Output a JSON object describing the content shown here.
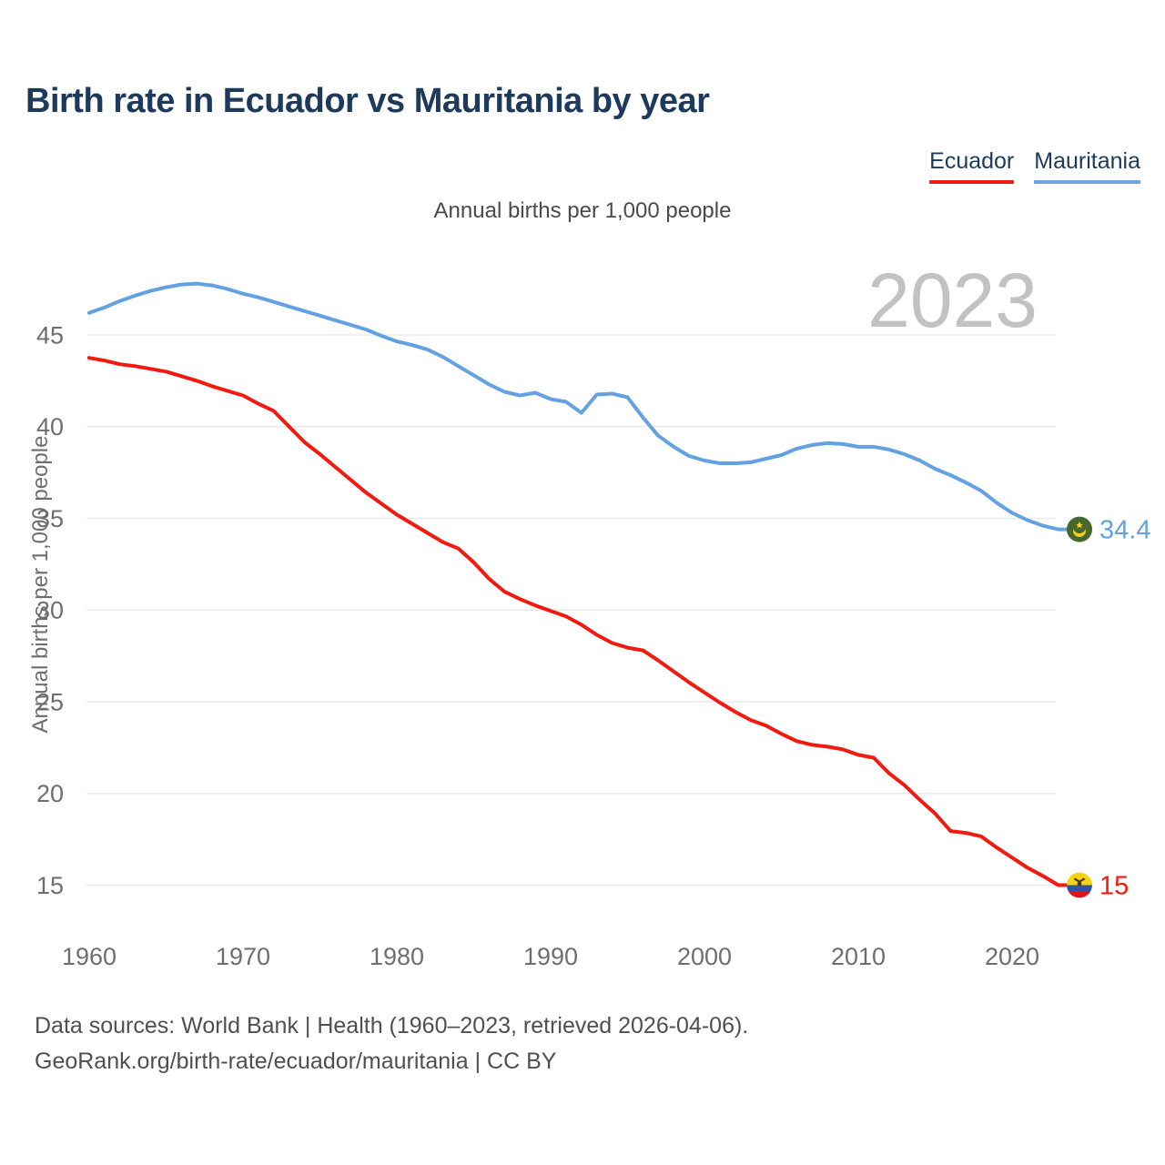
{
  "page": {
    "title": "Birth rate in Ecuador vs Mauritania by year",
    "subtitle": "Annual births per 1,000 people",
    "watermark": "2023",
    "footer_line1": "Data sources: World Bank | Health (1960–2023, retrieved 2026-04-06).",
    "footer_line2": "GeoRank.org/birth-rate/ecuador/mauritania | CC BY"
  },
  "legend": {
    "items": [
      {
        "label": "Ecuador",
        "color": "#f21a10"
      },
      {
        "label": "Mauritania",
        "color": "#6fa6e0"
      }
    ]
  },
  "icons": {
    "mauritania_flag": {
      "green": "#47682c",
      "gold": "#f5cf1b"
    },
    "ecuador_flag": {
      "yellow": "#f7d411",
      "blue": "#2e55a5",
      "red": "#e31118",
      "emblem": "#463a2b"
    }
  },
  "chart_data": {
    "type": "line",
    "title": "Birth rate in Ecuador vs Mauritania by year",
    "subtitle": "Annual births per 1,000 people",
    "ylabel": "Annual births per 1,000 people",
    "xlabel": "",
    "x_start": 1960,
    "x_end": 2023,
    "xticks": [
      1960,
      1970,
      1980,
      1990,
      2000,
      2010,
      2020
    ],
    "yticks": [
      15,
      20,
      25,
      30,
      35,
      40,
      45
    ],
    "ylim": [
      13.5,
      48.5
    ],
    "grid": "horizontal-only",
    "legend_position": "top-right",
    "year_badge": "2023",
    "series": [
      {
        "name": "Mauritania",
        "color": "#64a1e2",
        "end_label": "34.4",
        "marker": "mauritania-flag",
        "values": [
          46.2,
          46.5,
          46.85,
          47.15,
          47.4,
          47.6,
          47.75,
          47.8,
          47.7,
          47.5,
          47.25,
          47.05,
          46.8,
          46.55,
          46.3,
          46.05,
          45.8,
          45.55,
          45.3,
          44.95,
          44.65,
          44.45,
          44.2,
          43.8,
          43.3,
          42.8,
          42.3,
          41.9,
          41.7,
          41.85,
          41.5,
          41.35,
          40.75,
          41.75,
          41.8,
          41.6,
          40.5,
          39.5,
          38.9,
          38.4,
          38.15,
          38.0,
          38.0,
          38.05,
          38.25,
          38.45,
          38.8,
          39.0,
          39.1,
          39.05,
          38.9,
          38.9,
          38.75,
          38.5,
          38.15,
          37.7,
          37.35,
          36.95,
          36.5,
          35.85,
          35.3,
          34.9,
          34.6,
          34.4
        ]
      },
      {
        "name": "Ecuador",
        "color": "#f21a10",
        "end_label": "15",
        "marker": "ecuador-flag",
        "values": [
          43.75,
          43.6,
          43.4,
          43.3,
          43.15,
          43.0,
          42.75,
          42.5,
          42.2,
          41.95,
          41.7,
          41.25,
          40.85,
          40.0,
          39.15,
          38.5,
          37.8,
          37.1,
          36.4,
          35.8,
          35.2,
          34.7,
          34.2,
          33.7,
          33.35,
          32.6,
          31.7,
          31.0,
          30.6,
          30.25,
          29.95,
          29.65,
          29.2,
          28.65,
          28.2,
          27.95,
          27.8,
          27.25,
          26.65,
          26.05,
          25.5,
          24.95,
          24.45,
          24.0,
          23.7,
          23.25,
          22.85,
          22.65,
          22.55,
          22.4,
          22.1,
          21.95,
          21.1,
          20.45,
          19.65,
          18.9,
          17.95,
          17.85,
          17.65,
          17.05,
          16.5,
          15.95,
          15.5,
          15.0
        ]
      }
    ]
  }
}
